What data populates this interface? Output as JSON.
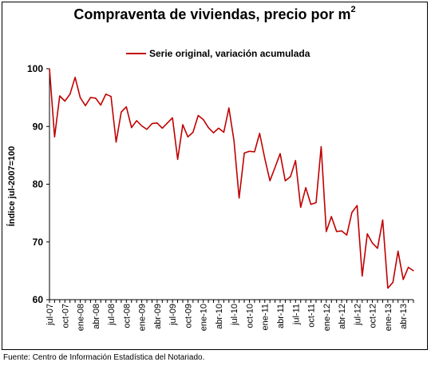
{
  "title": "Compraventa de viviendas, precio por m",
  "title_superscript": "2",
  "source": "Fuente: Centro de Información Estadística del Notariado.",
  "line_color": "#C00000",
  "chart_data": {
    "type": "line",
    "title": "Compraventa de viviendas, precio por m2",
    "xlabel": "",
    "ylabel": "Índice jul-2007=100",
    "ylim": [
      60,
      100
    ],
    "yticks": [
      60,
      70,
      80,
      90,
      100
    ],
    "grid": false,
    "legend": "top-center",
    "x_tick_labels": [
      "jul-07",
      "oct-07",
      "ene-08",
      "abr-08",
      "jul-08",
      "oct-08",
      "ene-09",
      "abr-09",
      "jul-09",
      "oct-09",
      "ene-10",
      "abr-10",
      "jul-10",
      "oct-10",
      "ene-11",
      "abr-11",
      "jul-11",
      "oct-11",
      "ene-12",
      "abr-12",
      "jul-12",
      "oct-12",
      "ene-13",
      "abr-13"
    ],
    "series": [
      {
        "name": "Serie original, variación acumulada",
        "values": [
          100.0,
          88.2,
          95.3,
          94.4,
          95.6,
          98.5,
          95.0,
          93.6,
          95.0,
          94.9,
          93.7,
          95.6,
          95.2,
          87.3,
          92.5,
          93.4,
          89.8,
          91.0,
          90.1,
          89.5,
          90.5,
          90.6,
          89.7,
          90.6,
          91.5,
          84.3,
          90.3,
          88.2,
          89.0,
          91.9,
          91.2,
          89.8,
          88.9,
          89.7,
          89.0,
          93.2,
          87.5,
          77.6,
          85.4,
          85.7,
          85.6,
          88.8,
          84.5,
          80.6,
          82.9,
          85.3,
          80.6,
          81.3,
          84.1,
          76.0,
          79.4,
          76.5,
          76.8,
          86.5,
          71.8,
          74.4,
          71.8,
          71.9,
          71.2,
          75.1,
          76.3,
          64.1,
          71.4,
          69.8,
          68.9,
          73.8,
          62.0,
          63.0,
          68.4,
          63.5,
          65.6,
          65.0
        ]
      }
    ]
  }
}
